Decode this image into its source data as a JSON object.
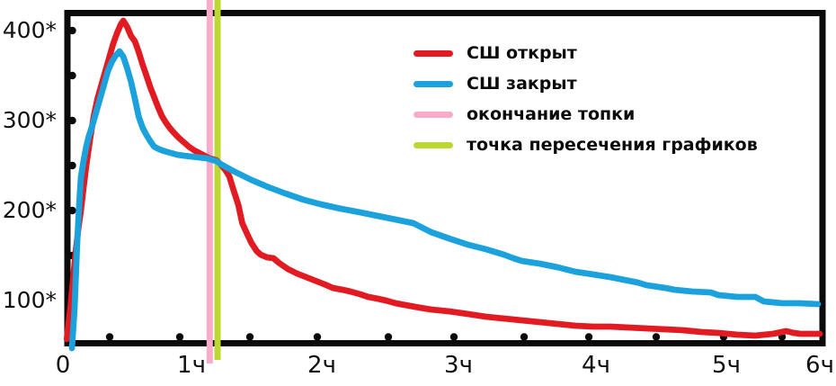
{
  "chart_data": {
    "type": "line",
    "title": "",
    "background": "#ffffff",
    "axis_color": "#0b0b0b",
    "x_axis": {
      "tick_labels": [
        "0",
        "1ч",
        "2ч",
        "3ч",
        "4ч",
        "5ч",
        "6ч"
      ],
      "tick_values": [
        0,
        1,
        2,
        3,
        4,
        5,
        6
      ],
      "xlim": [
        0,
        6
      ]
    },
    "y_axis": {
      "tick_labels": [
        "400*",
        "300*",
        "200*",
        "100*"
      ],
      "tick_values": [
        400,
        300,
        200,
        100
      ],
      "minor_tick_values": [
        350,
        250,
        150
      ],
      "ylim": [
        50,
        420
      ]
    },
    "series": [
      {
        "name": "СШ открыт",
        "color": "#e21b23",
        "points": [
          [
            0.03,
            57
          ],
          [
            0.06,
            95
          ],
          [
            0.08,
            125
          ],
          [
            0.1,
            155
          ],
          [
            0.12,
            180
          ],
          [
            0.14,
            200
          ],
          [
            0.16,
            225
          ],
          [
            0.18,
            248
          ],
          [
            0.21,
            278
          ],
          [
            0.24,
            305
          ],
          [
            0.27,
            325
          ],
          [
            0.3,
            340
          ],
          [
            0.33,
            355
          ],
          [
            0.36,
            370
          ],
          [
            0.39,
            385
          ],
          [
            0.42,
            397
          ],
          [
            0.45,
            407
          ],
          [
            0.47,
            411
          ],
          [
            0.5,
            404
          ],
          [
            0.53,
            394
          ],
          [
            0.56,
            388
          ],
          [
            0.59,
            376
          ],
          [
            0.62,
            362
          ],
          [
            0.65,
            350
          ],
          [
            0.68,
            337
          ],
          [
            0.71,
            326
          ],
          [
            0.74,
            315
          ],
          [
            0.77,
            305
          ],
          [
            0.8,
            298
          ],
          [
            0.83,
            292
          ],
          [
            0.86,
            287
          ],
          [
            0.9,
            281
          ],
          [
            0.94,
            276
          ],
          [
            0.98,
            271
          ],
          [
            1.02,
            267
          ],
          [
            1.06,
            264
          ],
          [
            1.1,
            261
          ],
          [
            1.14,
            258
          ],
          [
            1.19,
            256
          ],
          [
            1.22,
            252
          ],
          [
            1.26,
            245
          ],
          [
            1.29,
            238
          ],
          [
            1.32,
            224
          ],
          [
            1.36,
            206
          ],
          [
            1.39,
            186
          ],
          [
            1.43,
            173
          ],
          [
            1.46,
            164
          ],
          [
            1.5,
            155
          ],
          [
            1.53,
            151
          ],
          [
            1.58,
            148
          ],
          [
            1.63,
            147
          ],
          [
            1.67,
            142
          ],
          [
            1.74,
            135
          ],
          [
            1.81,
            130
          ],
          [
            1.88,
            126
          ],
          [
            1.95,
            122
          ],
          [
            2.02,
            118
          ],
          [
            2.08,
            114
          ],
          [
            2.15,
            112
          ],
          [
            2.21,
            110
          ],
          [
            2.28,
            107
          ],
          [
            2.34,
            104
          ],
          [
            2.41,
            102
          ],
          [
            2.47,
            100
          ],
          [
            2.54,
            97
          ],
          [
            2.61,
            95
          ],
          [
            2.72,
            92
          ],
          [
            2.8,
            90
          ],
          [
            2.93,
            88
          ],
          [
            3.07,
            85
          ],
          [
            3.2,
            82
          ],
          [
            3.33,
            80
          ],
          [
            3.46,
            78
          ],
          [
            3.59,
            76
          ],
          [
            3.72,
            74
          ],
          [
            3.85,
            72
          ],
          [
            3.98,
            71
          ],
          [
            4.11,
            71
          ],
          [
            4.25,
            70
          ],
          [
            4.39,
            69
          ],
          [
            4.53,
            68
          ],
          [
            4.67,
            67
          ],
          [
            4.81,
            65
          ],
          [
            4.94,
            64
          ],
          [
            5.12,
            62
          ],
          [
            5.31,
            61
          ],
          [
            5.5,
            63
          ],
          [
            5.64,
            66
          ],
          [
            5.72,
            64
          ],
          [
            5.79,
            63
          ],
          [
            5.9,
            63
          ],
          [
            6.0,
            63
          ]
        ]
      },
      {
        "name": "СШ закрыт",
        "color": "#1ba2dc",
        "points": [
          [
            0.07,
            47
          ],
          [
            0.09,
            90
          ],
          [
            0.1,
            125
          ],
          [
            0.11,
            160
          ],
          [
            0.12,
            190
          ],
          [
            0.13,
            215
          ],
          [
            0.14,
            237
          ],
          [
            0.16,
            255
          ],
          [
            0.18,
            270
          ],
          [
            0.2,
            282
          ],
          [
            0.23,
            295
          ],
          [
            0.26,
            310
          ],
          [
            0.29,
            325
          ],
          [
            0.32,
            340
          ],
          [
            0.35,
            355
          ],
          [
            0.38,
            365
          ],
          [
            0.41,
            372
          ],
          [
            0.44,
            377
          ],
          [
            0.47,
            371
          ],
          [
            0.5,
            358
          ],
          [
            0.53,
            343
          ],
          [
            0.56,
            324
          ],
          [
            0.59,
            304
          ],
          [
            0.62,
            292
          ],
          [
            0.65,
            284
          ],
          [
            0.68,
            277
          ],
          [
            0.71,
            271
          ],
          [
            0.75,
            268
          ],
          [
            0.79,
            266
          ],
          [
            0.84,
            264
          ],
          [
            0.89,
            262
          ],
          [
            0.94,
            261
          ],
          [
            1.0,
            260
          ],
          [
            1.06,
            259
          ],
          [
            1.12,
            258
          ],
          [
            1.19,
            255
          ],
          [
            1.22,
            252
          ],
          [
            1.32,
            244
          ],
          [
            1.46,
            234
          ],
          [
            1.59,
            226
          ],
          [
            1.72,
            219
          ],
          [
            1.86,
            212
          ],
          [
            1.99,
            207
          ],
          [
            2.14,
            202
          ],
          [
            2.28,
            198
          ],
          [
            2.41,
            194
          ],
          [
            2.54,
            190
          ],
          [
            2.67,
            186
          ],
          [
            2.8,
            176
          ],
          [
            2.93,
            169
          ],
          [
            3.07,
            162
          ],
          [
            3.2,
            157
          ],
          [
            3.33,
            151
          ],
          [
            3.4,
            147
          ],
          [
            3.46,
            144
          ],
          [
            3.59,
            141
          ],
          [
            3.72,
            137
          ],
          [
            3.85,
            132
          ],
          [
            3.98,
            129
          ],
          [
            4.11,
            126
          ],
          [
            4.25,
            122
          ],
          [
            4.32,
            120
          ],
          [
            4.39,
            117
          ],
          [
            4.53,
            114
          ],
          [
            4.6,
            112
          ],
          [
            4.74,
            110
          ],
          [
            4.88,
            109
          ],
          [
            4.94,
            106
          ],
          [
            5.12,
            104
          ],
          [
            5.31,
            104
          ],
          [
            5.4,
            99
          ],
          [
            5.6,
            97
          ],
          [
            5.79,
            97
          ],
          [
            5.98,
            96
          ]
        ]
      }
    ],
    "vlines": [
      {
        "name": "окончание топки",
        "color": "#f8abca",
        "x": 1.14
      },
      {
        "name": "точка пересечения графиков",
        "color": "#bdd733",
        "x": 1.2
      }
    ],
    "intersection_point": {
      "x": 1.2,
      "y": 255
    },
    "legend": [
      {
        "label": "СШ открыт",
        "color": "#e21b23"
      },
      {
        "label": "СШ закрыт",
        "color": "#1ba2dc"
      },
      {
        "label": "окончание топки",
        "color": "#f8abca"
      },
      {
        "label": "точка пересечения графиков",
        "color": "#bdd733"
      }
    ],
    "legend_position": "upper right",
    "grid": false
  }
}
